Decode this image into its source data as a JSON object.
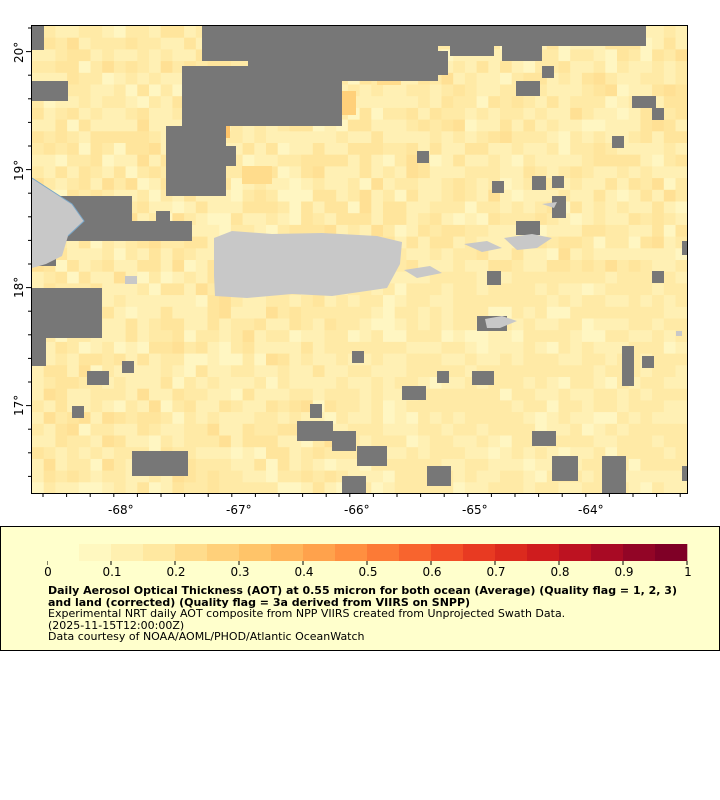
{
  "map": {
    "lon_labels": [
      "-68°",
      "-67°",
      "-66°",
      "-65°",
      "-64°"
    ],
    "lat_labels": [
      "20°",
      "19°",
      "18°",
      "17°"
    ],
    "lon_range": [
      -68.75,
      -63.0
    ],
    "lat_range": [
      16.3,
      20.25
    ],
    "colors": {
      "no_data": "#777777",
      "land": "#c8c8c8",
      "water_line": "#7aa7c8"
    }
  },
  "legend": {
    "tick_labels": [
      "0",
      "0.1",
      "0.2",
      "0.3",
      "0.4",
      "0.5",
      "0.6",
      "0.7",
      "0.8",
      "0.9",
      "1"
    ],
    "colors": [
      "#ffffcc",
      "#fff8c0",
      "#fff0b0",
      "#ffe8a0",
      "#ffdc8c",
      "#ffd07a",
      "#ffc469",
      "#ffb45a",
      "#ffa24c",
      "#ff8f40",
      "#fc7a36",
      "#f8642e",
      "#f24e27",
      "#e83a22",
      "#dc2a1e",
      "#cf1c1e",
      "#bd1221",
      "#a80a24",
      "#920526",
      "#7f0026"
    ],
    "title": "Daily Aerosol Optical Thickness (AOT) at 0.55 micron for both ocean (Average) (Quality flag = 1, 2, 3) and land (corrected) (Quality flag = 3a derived from VIIRS on SNPP)",
    "line2": "Experimental NRT daily AOT composite from NPP VIIRS created from Unprojected Swath Data.",
    "line3": "(2025-11-15T12:00:00Z)",
    "line4": "Data courtesy of NOAA/AOML/PHOD/Atlantic OceanWatch"
  }
}
